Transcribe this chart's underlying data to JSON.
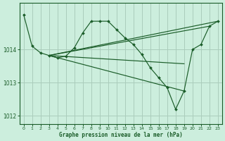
{
  "title": "Graphe pression niveau de la mer (hPa)",
  "bg_color": "#cceedd",
  "grid_color": "#aaccbb",
  "line_color": "#1a5c28",
  "ylim": [
    1011.75,
    1015.4
  ],
  "yticks": [
    1012,
    1013,
    1014
  ],
  "xlim": [
    -0.5,
    23.5
  ],
  "xticks": [
    0,
    1,
    2,
    3,
    4,
    5,
    6,
    7,
    8,
    9,
    10,
    11,
    12,
    13,
    14,
    15,
    16,
    17,
    18,
    19,
    20,
    21,
    22,
    23
  ],
  "series": [
    {
      "x": [
        0,
        1,
        2,
        3,
        4,
        5,
        6,
        7,
        8,
        9,
        10,
        11,
        12,
        13,
        14,
        15,
        16,
        17,
        18,
        19,
        20,
        21,
        22,
        23
      ],
      "y": [
        1015.05,
        1014.1,
        1013.9,
        1013.82,
        1013.75,
        1013.8,
        1014.05,
        1014.5,
        1014.85,
        1014.85,
        1014.85,
        1014.6,
        1014.35,
        1014.15,
        1013.85,
        1013.45,
        1013.15,
        1012.85,
        1012.2,
        1012.75,
        1014.0,
        1014.15,
        1014.7,
        1014.85
      ],
      "marker": true
    },
    {
      "x": [
        3,
        23
      ],
      "y": [
        1013.82,
        1014.85
      ],
      "marker": false
    },
    {
      "x": [
        3,
        22
      ],
      "y": [
        1013.82,
        1014.7
      ],
      "marker": false
    },
    {
      "x": [
        3,
        19
      ],
      "y": [
        1013.82,
        1013.57
      ],
      "marker": false
    },
    {
      "x": [
        3,
        19
      ],
      "y": [
        1013.82,
        1012.75
      ],
      "marker": false
    }
  ]
}
